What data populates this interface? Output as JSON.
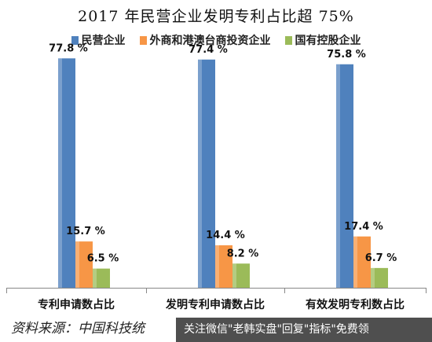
{
  "chart_data": {
    "type": "bar",
    "title": "2017 年民营企业发明专利占比超 75%",
    "categories": [
      "专利申请数占比",
      "发明专利申请数占比",
      "有效发明专利数占比"
    ],
    "series": [
      {
        "name": "民营企业",
        "values": [
          77.8,
          77.4,
          75.8
        ],
        "labels": [
          "77.8 %",
          "77.4 %",
          "75.8 %"
        ],
        "color": "#4f81bd"
      },
      {
        "name": "外商和港澳台商投资企业",
        "values": [
          15.7,
          14.4,
          17.4
        ],
        "labels": [
          "15.7 %",
          "14.4 %",
          "17.4 %"
        ],
        "color": "#f79646"
      },
      {
        "name": "国有控股企业",
        "values": [
          6.5,
          8.2,
          6.7
        ],
        "labels": [
          "6.5 %",
          "8.2 %",
          "6.7 %"
        ],
        "color": "#9bbb59"
      }
    ],
    "ylim": [
      0,
      80
    ],
    "legend": "top",
    "grid": false
  },
  "source_note": "资料来源：中国科技统",
  "watermark": "关注微信\"老韩实盘\"回复\"指标\"免费领"
}
